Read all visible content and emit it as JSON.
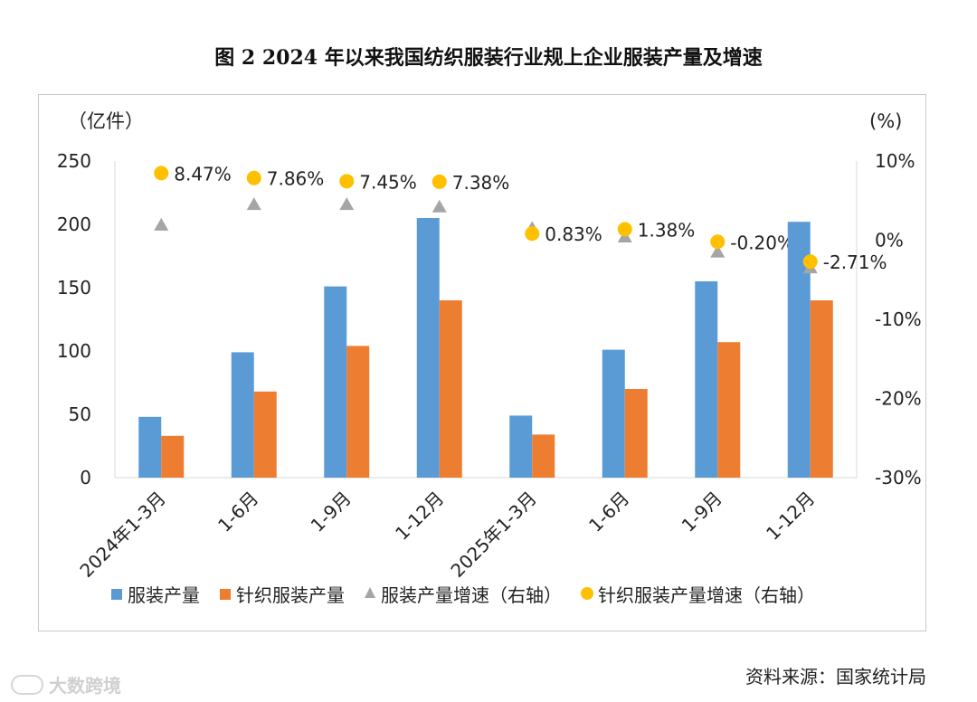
{
  "figure_title": "图 2   2024 年以来我国纺织服装行业规上企业服装产量及增速",
  "source": "资料来源：国家统计局",
  "watermark": "大数跨境",
  "colors": {
    "apparel_bar": "#5b9bd5",
    "knit_bar": "#ed7d31",
    "apparel_growth_marker": "#a5a5a5",
    "knit_growth_marker": "#ffc000",
    "axis": "#d9d9d9",
    "text": "#222222"
  },
  "chart_data": {
    "type": "bar",
    "title": "2024 年以来我国纺织服装行业规上企业服装产量及增速",
    "categories": [
      "2024年1-3月",
      "1-6月",
      "1-9月",
      "1-12月",
      "2025年1-3月",
      "1-6月",
      "1-9月",
      "1-12月"
    ],
    "left_axis": {
      "label": "（亿件）",
      "ylim": [
        0,
        250
      ],
      "ticks": [
        0,
        50,
        100,
        150,
        200,
        250
      ],
      "tick_labels": [
        "0",
        "50",
        "100",
        "150",
        "200",
        "250"
      ]
    },
    "right_axis": {
      "label": "(%)",
      "ylim": [
        -30,
        10
      ],
      "ticks": [
        10,
        0,
        -10,
        -20,
        -30
      ],
      "tick_labels": [
        "10%",
        "0%",
        "-10%",
        "-20%",
        "-30%"
      ]
    },
    "series": [
      {
        "name": "服装产量",
        "type": "bar",
        "axis": "left",
        "values": [
          48,
          99,
          151,
          205,
          49,
          101,
          155,
          202
        ]
      },
      {
        "name": "针织服装产量",
        "type": "bar",
        "axis": "left",
        "values": [
          33,
          68,
          104,
          140,
          34,
          70,
          107,
          140
        ]
      },
      {
        "name": "服装产量增速（右轴）",
        "type": "scatter",
        "marker": "triangle",
        "axis": "right",
        "values": [
          1.9,
          4.5,
          4.5,
          4.2,
          1.5,
          0.4,
          -1.5,
          -3.5
        ]
      },
      {
        "name": "针织服装产量增速（右轴）",
        "type": "scatter",
        "marker": "circle",
        "axis": "right",
        "values": [
          8.47,
          7.86,
          7.45,
          7.38,
          0.83,
          1.38,
          -0.2,
          -2.71
        ],
        "data_labels": [
          "8.47%",
          "7.86%",
          "7.45%",
          "7.38%",
          "0.83%",
          "1.38%",
          "-0.20%",
          "-2.71%"
        ]
      }
    ],
    "legend_position": "bottom",
    "grid": false
  }
}
